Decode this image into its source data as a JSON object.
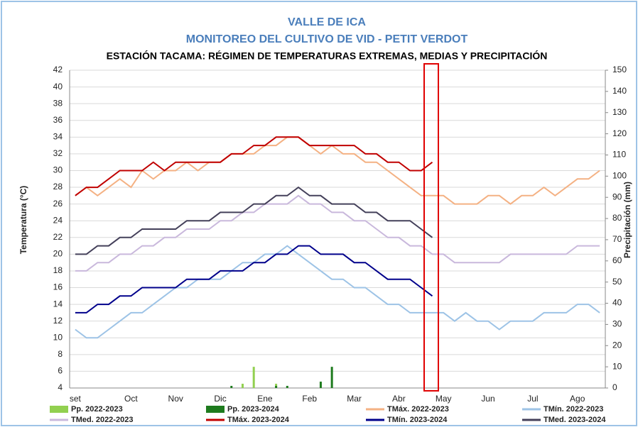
{
  "chart_data": {
    "type": "line",
    "title": "VALLE DE ICA",
    "subtitle": "MONITOREO DEL CULTIVO DE VID - PETIT VERDOT",
    "chart_title": "ESTACIÓN TACAMA: RÉGIMEN DE TEMPERATURAS EXTREMAS, MEDIAS Y PRECIPITACIÓN",
    "y_label": "Temperatura (°C)",
    "y2_label": "Precipitación (mm)",
    "categories": [
      "set",
      null,
      null,
      null,
      null,
      "Oct",
      null,
      null,
      null,
      "Nov",
      null,
      null,
      null,
      "Dic",
      null,
      null,
      null,
      "Ene",
      null,
      null,
      null,
      "Feb",
      null,
      null,
      null,
      "Mar",
      null,
      null,
      null,
      "Abr",
      null,
      null,
      null,
      "May",
      null,
      null,
      null,
      "Jun",
      null,
      null,
      null,
      "Jul",
      null,
      null,
      null,
      "Ago",
      null,
      null
    ],
    "ylim": [
      4,
      42
    ],
    "yticks": [
      4,
      6,
      8,
      10,
      12,
      14,
      16,
      18,
      20,
      22,
      24,
      26,
      28,
      30,
      32,
      34,
      36,
      38,
      40,
      42
    ],
    "y2lim": [
      0,
      150
    ],
    "y2ticks": [
      0,
      10,
      20,
      30,
      40,
      50,
      60,
      70,
      80,
      90,
      100,
      110,
      120,
      130,
      140,
      150
    ],
    "grid": true,
    "series": [
      {
        "name": "Pp. 2022-2023",
        "color": "#92d050",
        "type": "bar",
        "axis": "y2",
        "values": [
          0,
          0,
          0,
          0,
          0,
          0,
          0,
          0,
          0,
          0,
          0,
          0,
          0,
          0,
          0,
          2,
          10,
          0,
          2,
          0,
          0,
          0,
          0,
          0,
          0,
          0,
          0,
          0,
          0,
          0,
          0,
          0,
          0,
          0,
          0,
          0,
          0,
          0,
          0,
          0,
          0,
          0,
          0,
          0,
          0,
          0,
          0,
          0
        ]
      },
      {
        "name": "Pp. 2023-2024",
        "color": "#1e7b1e",
        "type": "bar",
        "axis": "y2",
        "values": [
          0,
          0,
          0,
          0,
          0,
          0,
          0,
          0,
          0,
          0,
          0,
          0,
          0,
          0,
          1,
          0,
          0,
          0,
          1,
          1,
          0,
          0,
          3,
          10,
          0,
          0,
          0,
          0,
          0,
          0,
          0,
          0,
          0,
          0,
          0,
          0,
          0,
          0,
          0,
          0,
          0,
          0,
          0,
          0,
          0,
          0,
          0,
          0
        ]
      },
      {
        "name": "TMáx. 2022-2023",
        "color": "#f4b183",
        "values": [
          27,
          28,
          27,
          28,
          29,
          28,
          30,
          29,
          30,
          30,
          31,
          30,
          31,
          31,
          32,
          32,
          32,
          33,
          33,
          34,
          34,
          33,
          32,
          33,
          32,
          32,
          31,
          31,
          30,
          29,
          28,
          27,
          27,
          27,
          26,
          26,
          26,
          27,
          27,
          26,
          27,
          27,
          28,
          27,
          28,
          29,
          29,
          30
        ]
      },
      {
        "name": "TMín. 2022-2023",
        "color": "#9dc3e6",
        "values": [
          11,
          10,
          10,
          11,
          12,
          13,
          13,
          14,
          15,
          16,
          16,
          17,
          17,
          17,
          18,
          19,
          19,
          20,
          20,
          21,
          20,
          19,
          18,
          17,
          17,
          16,
          16,
          15,
          14,
          14,
          13,
          13,
          13,
          13,
          12,
          13,
          12,
          12,
          11,
          12,
          12,
          12,
          13,
          13,
          13,
          14,
          14,
          13
        ]
      },
      {
        "name": "TMed. 2022-2023",
        "color": "#c9b8dc",
        "values": [
          18,
          18,
          19,
          19,
          20,
          20,
          21,
          21,
          22,
          22,
          23,
          23,
          23,
          24,
          24,
          25,
          25,
          26,
          26,
          26,
          27,
          26,
          26,
          25,
          25,
          24,
          24,
          23,
          22,
          22,
          21,
          21,
          20,
          20,
          19,
          19,
          19,
          19,
          19,
          20,
          20,
          20,
          20,
          20,
          20,
          21,
          21,
          21
        ]
      },
      {
        "name": "TMáx. 2023-2024",
        "color": "#c00000",
        "values": [
          27,
          28,
          28,
          29,
          30,
          30,
          30,
          31,
          30,
          31,
          31,
          31,
          31,
          31,
          32,
          32,
          33,
          33,
          34,
          34,
          34,
          33,
          33,
          33,
          33,
          33,
          32,
          32,
          31,
          31,
          30,
          30,
          31,
          null,
          null,
          null,
          null,
          null,
          null,
          null,
          null,
          null,
          null,
          null,
          null,
          null,
          null,
          null
        ]
      },
      {
        "name": "TMín. 2023-2024",
        "color": "#00008b",
        "values": [
          13,
          13,
          14,
          14,
          15,
          15,
          16,
          16,
          16,
          16,
          17,
          17,
          17,
          18,
          18,
          18,
          19,
          19,
          20,
          20,
          21,
          21,
          20,
          20,
          20,
          19,
          19,
          18,
          17,
          17,
          17,
          16,
          15,
          null,
          null,
          null,
          null,
          null,
          null,
          null,
          null,
          null,
          null,
          null,
          null,
          null,
          null,
          null
        ]
      },
      {
        "name": "TMed. 2023-2024",
        "color": "#44405a",
        "values": [
          20,
          20,
          21,
          21,
          22,
          22,
          23,
          23,
          23,
          23,
          24,
          24,
          24,
          25,
          25,
          25,
          26,
          26,
          27,
          27,
          28,
          27,
          27,
          26,
          26,
          26,
          25,
          25,
          24,
          24,
          24,
          23,
          22,
          null,
          null,
          null,
          null,
          null,
          null,
          null,
          null,
          null,
          null,
          null,
          null,
          null,
          null,
          null
        ]
      }
    ]
  }
}
